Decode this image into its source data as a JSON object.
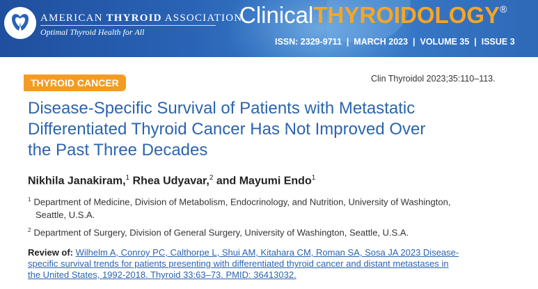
{
  "header": {
    "association_name_part1": "AMERICAN",
    "association_name_part2": "THYROID",
    "association_name_part3": "ASSOCIATION",
    "association_tagline": "Optimal Thyroid Health for All",
    "journal_word1": "Clinical",
    "journal_word2": "THYROIDOLOGY",
    "journal_mark": "®",
    "issue_line": "ISSN: 2329-9711  |  MARCH 2023  |  VOLUME 35  |  ISSUE 3",
    "colors": {
      "banner": "#2a63b5",
      "accent": "#f7a623"
    },
    "logo_icon": "thyroid-butterfly-logo"
  },
  "article": {
    "category": "THYROID CANCER",
    "citation": "Clin Thyroidol 2023;35:110–113.",
    "title_lines": [
      "Disease-Specific Survival of Patients with Metastatic",
      "Differentiated Thyroid Cancer Has Not Improved Over",
      "the Past Three Decades"
    ],
    "authors": [
      {
        "name": "Nikhila Janakiram,",
        "aff": "1"
      },
      {
        "name": "Rhea Udyavar,",
        "aff": "2"
      },
      {
        "name": "and Mayumi Endo",
        "aff": "1"
      }
    ],
    "affiliations": [
      {
        "num": "1",
        "line1": "Department of Medicine, Division of Metabolism, Endocrinology, and Nutrition, University of Washington,",
        "line2": "Seattle, U.S.A."
      },
      {
        "num": "2",
        "line1": "Department of Surgery, Division of General Surgery, University of Washington, Seattle, U.S.A."
      }
    ],
    "review_label": "Review of:",
    "review_lines": [
      "Wilhelm A, Conroy PC, Calthorpe L, Shui AM, Kitahara CM, Roman SA, Sosa JA 2023 Disease-",
      "specific survival trends for patients presenting with differentiated thyroid cancer and distant metastases in",
      "the United States, 1992-2018. Thyroid 33:63–73. PMID: 36413032."
    ],
    "colors": {
      "title": "#2b64ae",
      "category_bg": "#f39c21"
    }
  }
}
